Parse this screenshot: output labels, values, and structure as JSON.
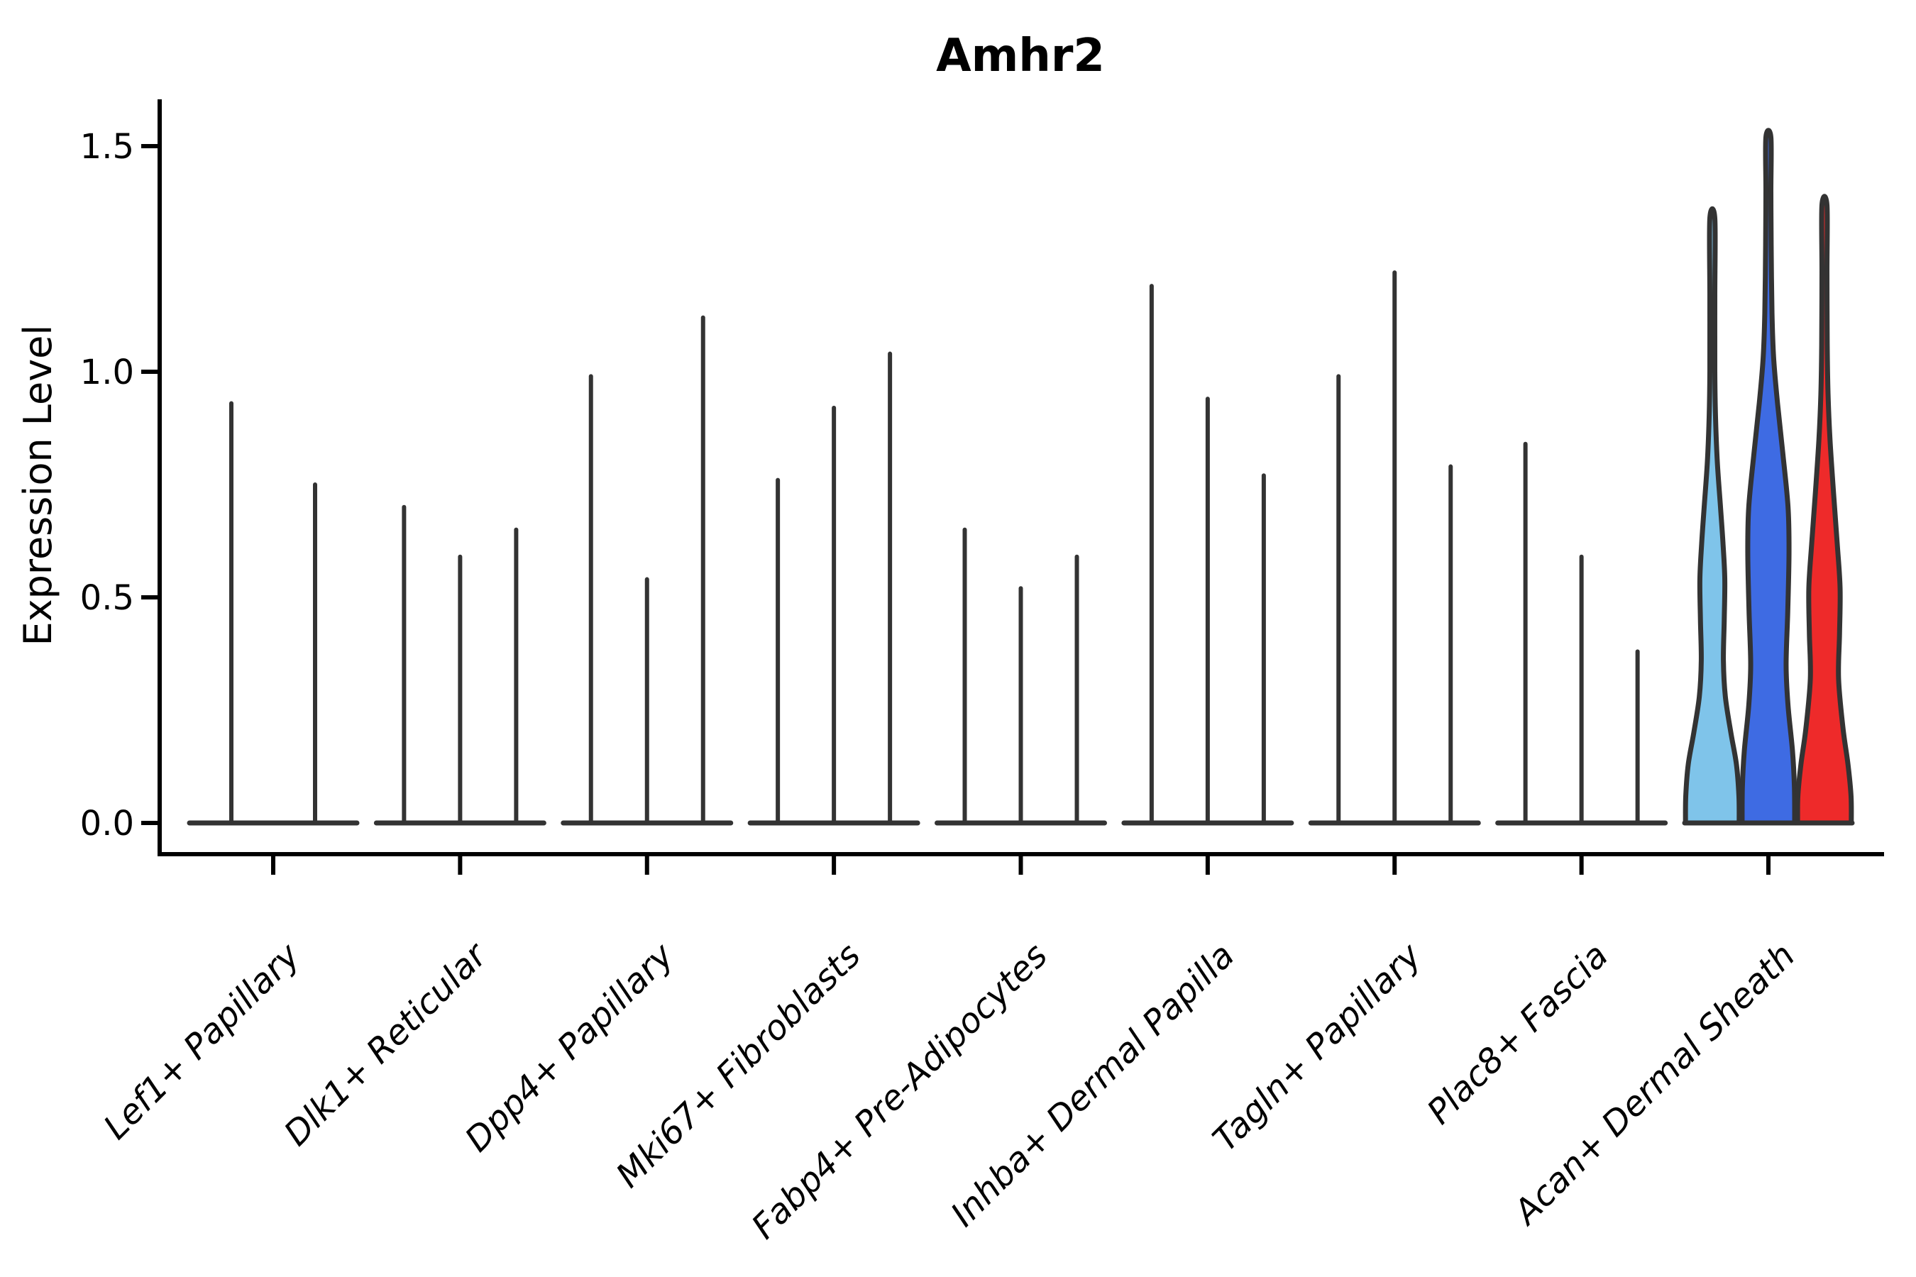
{
  "title": "Amhr2",
  "ylabel": "Expression Level",
  "chart_data": {
    "type": "violin",
    "title": "Amhr2",
    "xlabel": "",
    "ylabel": "Expression Level",
    "ylim": [
      0,
      1.55
    ],
    "grid": false,
    "legend": null,
    "yticks": [
      {
        "value": 0.0,
        "label": "0.0"
      },
      {
        "value": 0.5,
        "label": "0.5"
      },
      {
        "value": 1.0,
        "label": "1.0"
      },
      {
        "value": 1.5,
        "label": "1.5"
      }
    ],
    "colors": {
      "outline": "#333333",
      "spike": "#333333",
      "split_skyblue": "#7FC4EA",
      "split_blue": "#3E6BE3",
      "split_red": "#EE2A2A"
    },
    "categories": [
      {
        "label": "Lef1+ Papillary",
        "violins": [
          {
            "style": "spike",
            "max": 0.93
          },
          {
            "style": "spike",
            "max": 0.75
          }
        ]
      },
      {
        "label": "Dlk1+ Reticular",
        "violins": [
          {
            "style": "spike",
            "max": 0.7
          },
          {
            "style": "spike",
            "max": 0.59
          },
          {
            "style": "spike",
            "max": 0.65
          }
        ]
      },
      {
        "label": "Dpp4+ Papillary",
        "violins": [
          {
            "style": "spike",
            "max": 0.99
          },
          {
            "style": "spike",
            "max": 0.54
          },
          {
            "style": "spike",
            "max": 1.12
          }
        ]
      },
      {
        "label": "Mki67+ Fibroblasts",
        "violins": [
          {
            "style": "spike",
            "max": 0.76
          },
          {
            "style": "spike",
            "max": 0.92
          },
          {
            "style": "spike",
            "max": 1.04
          }
        ]
      },
      {
        "label": "Fabp4+ Pre-Adipocytes",
        "violins": [
          {
            "style": "spike",
            "max": 0.65
          },
          {
            "style": "spike",
            "max": 0.52
          },
          {
            "style": "spike",
            "max": 0.59
          }
        ]
      },
      {
        "label": "Inhba+ Dermal Papilla",
        "violins": [
          {
            "style": "spike",
            "max": 1.19
          },
          {
            "style": "spike",
            "max": 0.94
          },
          {
            "style": "spike",
            "max": 0.77
          }
        ]
      },
      {
        "label": "Tagln+ Papillary",
        "violins": [
          {
            "style": "spike",
            "max": 0.99
          },
          {
            "style": "spike",
            "max": 1.22
          },
          {
            "style": "spike",
            "max": 0.79
          }
        ]
      },
      {
        "label": "Plac8+ Fascia",
        "violins": [
          {
            "style": "spike",
            "max": 0.84
          },
          {
            "style": "spike",
            "max": 0.59
          },
          {
            "style": "spike",
            "max": 0.38
          }
        ]
      },
      {
        "label": "Acan+ Dermal Sheath",
        "violins": [
          {
            "style": "shaped",
            "max": 1.34,
            "color": "#7FC4EA",
            "profile": [
              [
                0,
                0.97
              ],
              [
                0.06,
                0.96
              ],
              [
                0.13,
                0.87
              ],
              [
                0.2,
                0.67
              ],
              [
                0.28,
                0.47
              ],
              [
                0.36,
                0.4
              ],
              [
                0.45,
                0.43
              ],
              [
                0.54,
                0.45
              ],
              [
                0.62,
                0.385
              ],
              [
                0.7,
                0.295
              ],
              [
                0.8,
                0.18
              ],
              [
                0.9,
                0.115
              ],
              [
                1.0,
                0.09
              ],
              [
                1.17,
                0.09
              ],
              [
                1.34,
                0.09
              ]
            ]
          },
          {
            "style": "shaped",
            "max": 1.52,
            "color": "#3E6BE3",
            "profile": [
              [
                0,
                0.95
              ],
              [
                0.08,
                0.94
              ],
              [
                0.16,
                0.87
              ],
              [
                0.26,
                0.71
              ],
              [
                0.35,
                0.64
              ],
              [
                0.47,
                0.7
              ],
              [
                0.6,
                0.745
              ],
              [
                0.7,
                0.71
              ],
              [
                0.82,
                0.52
              ],
              [
                0.93,
                0.33
              ],
              [
                1.03,
                0.19
              ],
              [
                1.13,
                0.13
              ],
              [
                1.28,
                0.1
              ],
              [
                1.4,
                0.09
              ],
              [
                1.52,
                0.09
              ]
            ]
          },
          {
            "style": "shaped",
            "max": 1.37,
            "color": "#EE2A2A",
            "profile": [
              [
                0,
                0.97
              ],
              [
                0.06,
                0.96
              ],
              [
                0.13,
                0.85
              ],
              [
                0.21,
                0.67
              ],
              [
                0.32,
                0.51
              ],
              [
                0.42,
                0.545
              ],
              [
                0.52,
                0.565
              ],
              [
                0.62,
                0.46
              ],
              [
                0.73,
                0.33
              ],
              [
                0.85,
                0.2
              ],
              [
                0.95,
                0.13
              ],
              [
                1.06,
                0.1
              ],
              [
                1.22,
                0.09
              ],
              [
                1.37,
                0.09
              ]
            ]
          }
        ]
      }
    ]
  }
}
